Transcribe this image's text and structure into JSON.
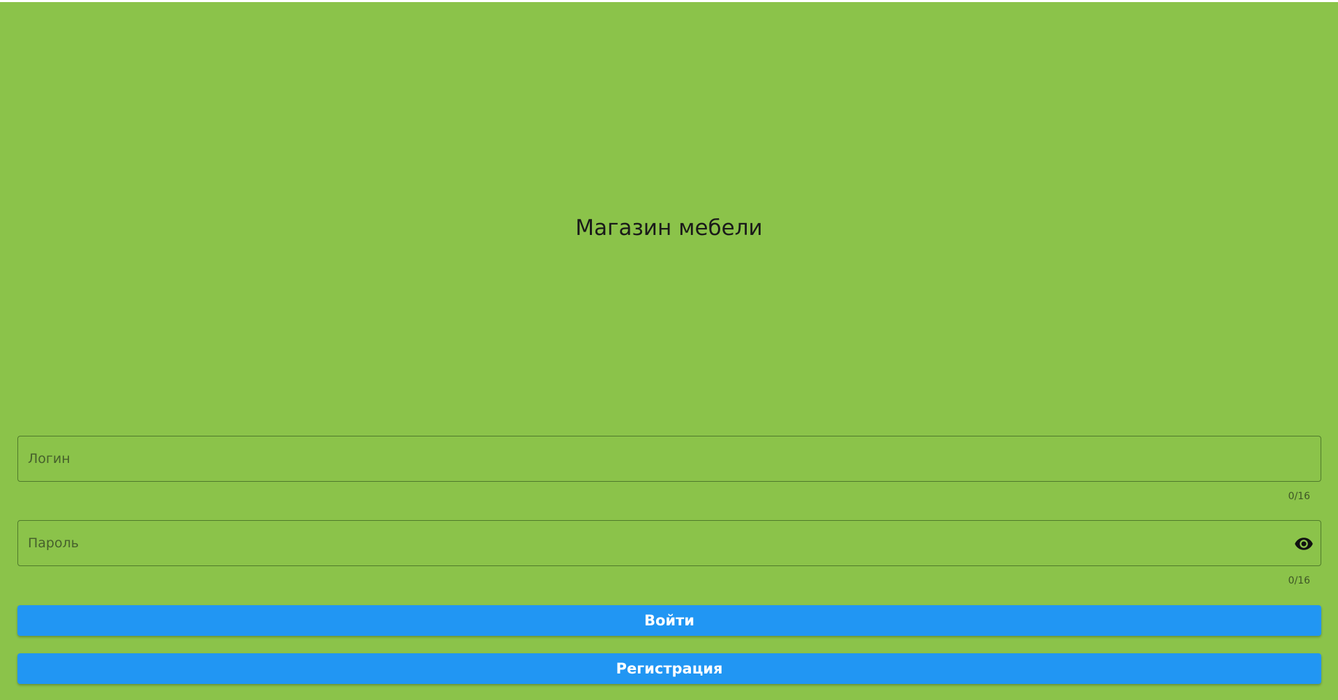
{
  "app": {
    "title": "Магазин мебели",
    "background_color": "#8bc34a"
  },
  "form": {
    "login": {
      "value": "",
      "placeholder": "Логин",
      "counter": "0/16"
    },
    "password": {
      "value": "",
      "placeholder": "Пароль",
      "counter": "0/16",
      "toggle_icon": "eye-icon"
    },
    "buttons": {
      "login_label": "Войти",
      "register_label": "Регистрация",
      "color": "#2196f3"
    }
  }
}
